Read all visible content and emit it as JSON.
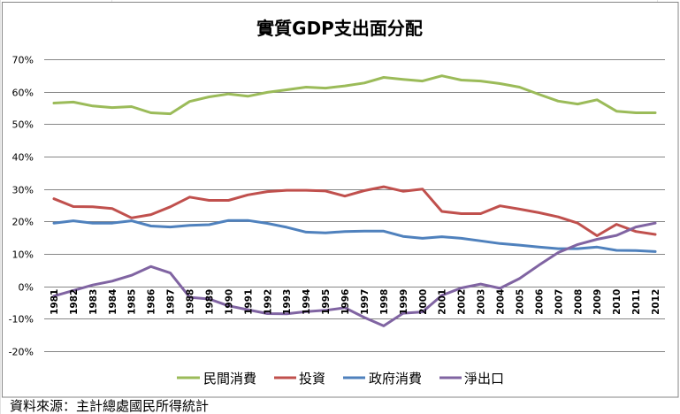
{
  "chart_data": {
    "type": "line",
    "title": "實質GDP支出面分配",
    "xlabel": "",
    "ylabel": "",
    "ylim": [
      -20,
      70
    ],
    "yticks": [
      "70%",
      "60%",
      "50%",
      "40%",
      "30%",
      "20%",
      "10%",
      "0%",
      "-10%",
      "-20%"
    ],
    "ytick_values": [
      70,
      60,
      50,
      40,
      30,
      20,
      10,
      0,
      -10,
      -20
    ],
    "grid": true,
    "legend_position": "bottom",
    "categories": [
      "1981",
      "1982",
      "1983",
      "1984",
      "1985",
      "1986",
      "1987",
      "1988",
      "1989",
      "1990",
      "1991",
      "1992",
      "1993",
      "1994",
      "1995",
      "1996",
      "1997",
      "1998",
      "1999",
      "2000",
      "2001",
      "2002",
      "2003",
      "2004",
      "2005",
      "2006",
      "2007",
      "2008",
      "2009",
      "2010",
      "2011",
      "2012"
    ],
    "series": [
      {
        "name": "民間消費",
        "color": "#9BBB59",
        "values": [
          56.5,
          56.8,
          55.6,
          55.1,
          55.4,
          53.5,
          53.2,
          57.0,
          58.4,
          59.3,
          58.6,
          59.8,
          60.6,
          61.4,
          61.1,
          61.8,
          62.7,
          64.4,
          63.8,
          63.3,
          64.9,
          63.6,
          63.3,
          62.5,
          61.4,
          59.2,
          57.1,
          56.2,
          57.5,
          54.0,
          53.5,
          53.5
        ]
      },
      {
        "name": "投資",
        "color": "#C0504D",
        "values": [
          27.0,
          24.6,
          24.5,
          24.0,
          21.1,
          22.1,
          24.5,
          27.5,
          26.5,
          26.5,
          28.2,
          29.2,
          29.6,
          29.6,
          29.4,
          27.8,
          29.5,
          30.7,
          29.3,
          30.0,
          23.1,
          22.4,
          22.4,
          24.8,
          23.8,
          22.7,
          21.4,
          19.5,
          15.6,
          19.1,
          16.9,
          16.0
        ]
      },
      {
        "name": "政府消費",
        "color": "#4F81BD",
        "values": [
          19.5,
          20.2,
          19.5,
          19.5,
          20.2,
          18.6,
          18.3,
          18.8,
          19.0,
          20.3,
          20.3,
          19.4,
          18.2,
          16.7,
          16.5,
          16.9,
          17.0,
          17.0,
          15.4,
          14.8,
          15.3,
          14.8,
          14.0,
          13.2,
          12.7,
          12.1,
          11.6,
          11.6,
          12.1,
          11.1,
          11.0,
          10.7
        ]
      },
      {
        "name": "淨出口",
        "color": "#8064A2",
        "values": [
          -3.0,
          -1.3,
          0.4,
          1.6,
          3.4,
          6.1,
          4.1,
          -3.4,
          -3.9,
          -6.0,
          -7.2,
          -8.4,
          -8.5,
          -7.8,
          -7.4,
          -6.6,
          -9.6,
          -12.2,
          -8.3,
          -7.9,
          -2.8,
          -0.5,
          0.7,
          -0.6,
          2.4,
          6.5,
          10.4,
          12.9,
          14.5,
          15.7,
          18.3,
          19.5
        ]
      }
    ]
  },
  "source_note": "資料來源：主計總處國民所得統計"
}
